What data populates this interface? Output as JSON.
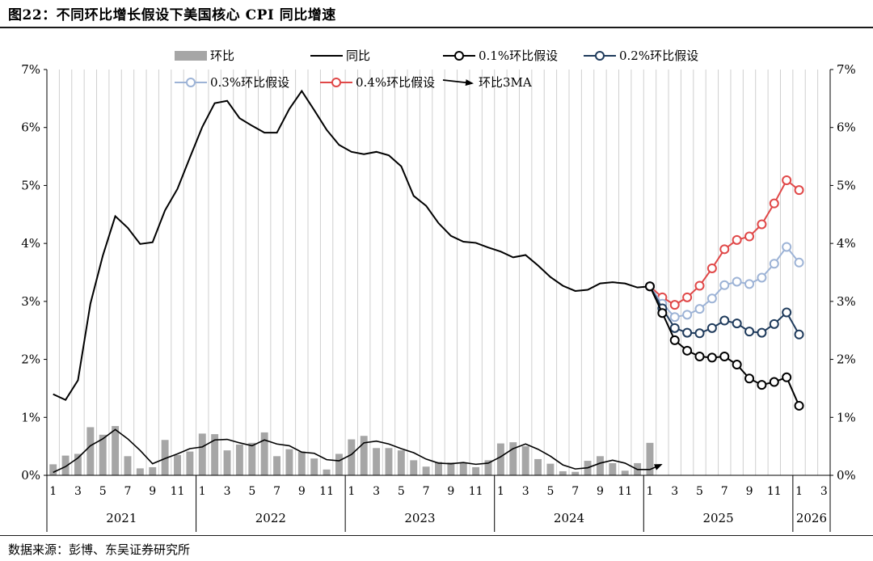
{
  "figure_title": "图22：不同环比增长假设下美国核心 CPI 同比增速",
  "source_note": "数据来源：彭博、东吴证券研究所",
  "chart_data": {
    "type": "bar+line",
    "y_left": {
      "min": 0,
      "max": 7,
      "ticks": [
        "0%",
        "1%",
        "2%",
        "3%",
        "4%",
        "5%",
        "6%",
        "7%"
      ]
    },
    "y_right": {
      "min": 0,
      "max": 7,
      "ticks": [
        "0%",
        "1%",
        "2%",
        "3%",
        "4%",
        "5%",
        "6%",
        "7%"
      ]
    },
    "month_labels": [
      "1",
      "",
      "3",
      "",
      "5",
      "",
      "7",
      "",
      "9",
      "",
      "11",
      "",
      "1",
      "",
      "3",
      "",
      "5",
      "",
      "7",
      "",
      "9",
      "",
      "11",
      "",
      "1",
      "",
      "3",
      "",
      "5",
      "",
      "7",
      "",
      "9",
      "",
      "11",
      "",
      "1",
      "",
      "3",
      "",
      "5",
      "",
      "7",
      "",
      "9",
      "",
      "11",
      "",
      "1",
      "",
      "3",
      "",
      "5",
      "",
      "7",
      "",
      "9",
      "",
      "11",
      "",
      "1",
      "",
      "3"
    ],
    "years": [
      {
        "label": "2021",
        "start": 0,
        "end": 12
      },
      {
        "label": "2022",
        "start": 12,
        "end": 24
      },
      {
        "label": "2023",
        "start": 24,
        "end": 36
      },
      {
        "label": "2024",
        "start": 36,
        "end": 48
      },
      {
        "label": "2025",
        "start": 48,
        "end": 60
      },
      {
        "label": "2026",
        "start": 60,
        "end": 63
      }
    ],
    "legend": [
      {
        "key": "mom",
        "label": "环比",
        "kind": "bar",
        "color": "#a6a6a6"
      },
      {
        "key": "yoy",
        "label": "同比",
        "kind": "line",
        "color": "#000000"
      },
      {
        "key": "s01",
        "label": "0.1%环比假设",
        "kind": "line-marker",
        "color": "#000000"
      },
      {
        "key": "s02",
        "label": "0.2%环比假设",
        "kind": "line-marker",
        "color": "#1f3b5c"
      },
      {
        "key": "s03",
        "label": "0.3%环比假设",
        "kind": "line-marker",
        "color": "#9db3d6"
      },
      {
        "key": "s04",
        "label": "0.4%环比假设",
        "kind": "line-marker",
        "color": "#e04848"
      },
      {
        "key": "ma3",
        "label": "环比3MA",
        "kind": "arrow",
        "color": "#000000"
      }
    ],
    "mom_bars": [
      0.19,
      0.34,
      0.37,
      0.83,
      0.7,
      0.85,
      0.33,
      0.12,
      0.14,
      0.61,
      0.35,
      0.41,
      0.72,
      0.71,
      0.43,
      0.53,
      0.56,
      0.74,
      0.33,
      0.45,
      0.41,
      0.29,
      0.1,
      0.37,
      0.62,
      0.68,
      0.47,
      0.47,
      0.43,
      0.26,
      0.15,
      0.23,
      0.22,
      0.22,
      0.14,
      0.26,
      0.55,
      0.57,
      0.5,
      0.28,
      0.2,
      0.07,
      0.06,
      0.25,
      0.33,
      0.21,
      0.08,
      0.21,
      0.56
    ],
    "yoy": [
      1.4,
      1.3,
      1.64,
      2.96,
      3.79,
      4.47,
      4.27,
      3.99,
      4.02,
      4.57,
      4.94,
      5.48,
      6.01,
      6.42,
      6.46,
      6.16,
      6.03,
      5.91,
      5.91,
      6.32,
      6.63,
      6.3,
      5.96,
      5.7,
      5.58,
      5.54,
      5.58,
      5.52,
      5.33,
      4.82,
      4.65,
      4.35,
      4.13,
      4.03,
      4.01,
      3.93,
      3.86,
      3.76,
      3.8,
      3.62,
      3.42,
      3.27,
      3.18,
      3.2,
      3.31,
      3.33,
      3.31,
      3.24,
      3.26
    ],
    "mom_3ma": [
      0.05,
      0.15,
      0.3,
      0.51,
      0.63,
      0.79,
      0.63,
      0.43,
      0.2,
      0.29,
      0.37,
      0.46,
      0.49,
      0.61,
      0.62,
      0.56,
      0.51,
      0.61,
      0.54,
      0.51,
      0.4,
      0.38,
      0.27,
      0.25,
      0.36,
      0.56,
      0.59,
      0.54,
      0.46,
      0.39,
      0.28,
      0.21,
      0.2,
      0.22,
      0.19,
      0.21,
      0.32,
      0.46,
      0.54,
      0.45,
      0.33,
      0.18,
      0.11,
      0.13,
      0.21,
      0.26,
      0.21,
      0.1,
      0.1
    ],
    "scenarios": {
      "start_index": 48,
      "s01": [
        3.26,
        2.8,
        2.33,
        2.15,
        2.05,
        2.03,
        2.05,
        1.91,
        1.67,
        1.56,
        1.61,
        1.69,
        1.2
      ],
      "s02": [
        3.26,
        2.88,
        2.54,
        2.46,
        2.45,
        2.54,
        2.67,
        2.62,
        2.48,
        2.46,
        2.61,
        2.81,
        2.43
      ],
      "s03": [
        3.26,
        2.96,
        2.73,
        2.77,
        2.87,
        3.05,
        3.28,
        3.34,
        3.3,
        3.41,
        3.65,
        3.94,
        3.67
      ],
      "s04": [
        3.26,
        3.07,
        2.94,
        3.07,
        3.27,
        3.57,
        3.9,
        4.06,
        4.12,
        4.33,
        4.69,
        5.09,
        4.92
      ]
    }
  }
}
